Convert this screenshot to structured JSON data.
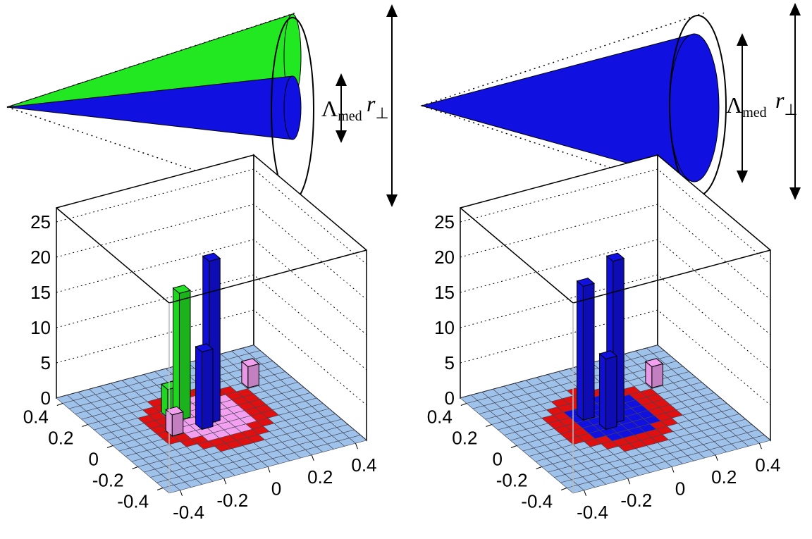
{
  "chart_data": [
    {
      "type": "lego3d",
      "annotations": [
        "Λ",
        "med",
        "r",
        "⊥"
      ],
      "xlim": [
        -0.45,
        0.45
      ],
      "ylim": [
        -0.45,
        0.45
      ],
      "zlim": [
        0,
        27
      ],
      "xticks": [
        -0.4,
        -0.2,
        0,
        0.2,
        0.4
      ],
      "yticks": [
        -0.4,
        -0.2,
        0,
        0.2,
        0.4
      ],
      "zticks": [
        0,
        5,
        10,
        15,
        20,
        25
      ],
      "series": [
        {
          "color": "#22e022",
          "x": [
            -0.09,
            -0.12
          ],
          "y": [
            0.08,
            0.12
          ],
          "values": [
            18,
            4
          ]
        },
        {
          "color": "#1010e0",
          "x": [
            0,
            -0.05
          ],
          "y": [
            0,
            -0.03
          ],
          "values": [
            23,
            11
          ]
        },
        {
          "color": "#f4a0f0",
          "x": [
            0.28,
            -0.18
          ],
          "y": [
            0.18,
            -0.02
          ],
          "values": [
            3,
            3
          ]
        }
      ]
    },
    {
      "type": "lego3d",
      "annotations": [
        "Λ",
        "med",
        "r",
        "⊥"
      ],
      "xlim": [
        -0.45,
        0.45
      ],
      "ylim": [
        -0.45,
        0.45
      ],
      "zlim": [
        0,
        27
      ],
      "xticks": [
        -0.4,
        -0.2,
        0,
        0.2,
        0.4
      ],
      "yticks": [
        -0.4,
        -0.2,
        0,
        0.2,
        0.4
      ],
      "zticks": [
        0,
        5,
        10,
        15,
        20,
        25
      ],
      "series": [
        {
          "color": "#1010e0",
          "x": [
            0,
            -0.09,
            -0.05
          ],
          "y": [
            0,
            0.08,
            -0.03
          ],
          "values": [
            23,
            19,
            10
          ]
        },
        {
          "color": "#f4a0f0",
          "x": [
            0.28
          ],
          "y": [
            0.18
          ],
          "values": [
            3
          ]
        }
      ]
    }
  ]
}
